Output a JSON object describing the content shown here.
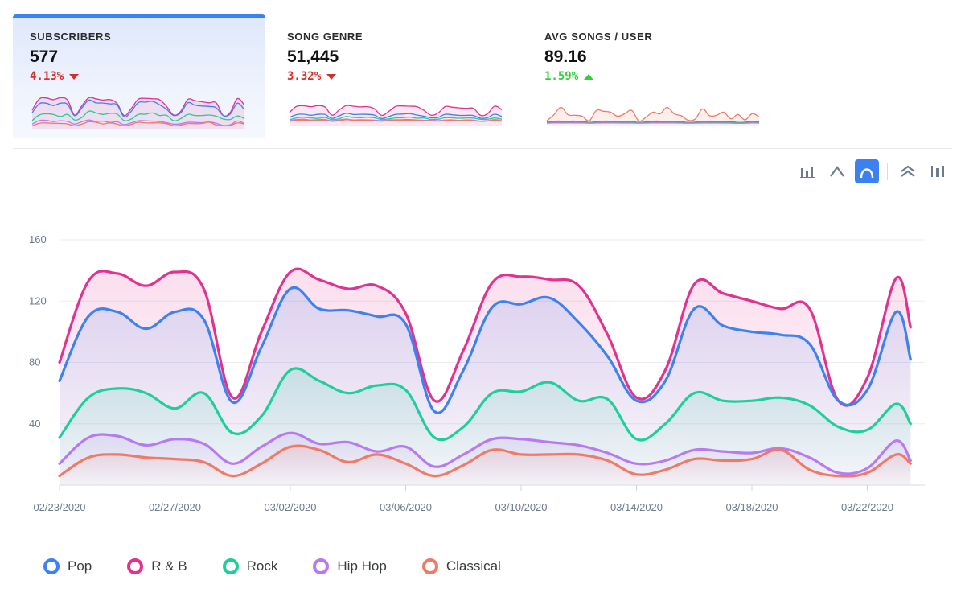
{
  "cards": [
    {
      "label": "SUBSCRIBERS",
      "value": "577",
      "change": "4.13%",
      "direction": "down"
    },
    {
      "label": "SONG GENRE",
      "value": "51,445",
      "change": "3.32%",
      "direction": "down"
    },
    {
      "label": "AVG SONGS / USER",
      "value": "89.16",
      "change": "1.59%",
      "direction": "up"
    }
  ],
  "toolbar": {
    "icons": [
      "bar-chart-icon",
      "line-chart-icon",
      "smooth-curve-icon",
      "stacked-area-icon",
      "column-toggle-icon"
    ],
    "active": "smooth-curve-icon"
  },
  "colors": {
    "Pop": "#3d82ef",
    "R & B": "#e2328f",
    "Rock": "#1fcf9b",
    "Hip Hop": "#b77bef",
    "Classical": "#f07a66",
    "accent": "#3b82f0"
  },
  "chart_data": {
    "type": "area",
    "smooth": true,
    "x": [
      "02/23/2020",
      "02/24/2020",
      "02/25/2020",
      "02/26/2020",
      "02/27/2020",
      "02/28/2020",
      "02/29/2020",
      "03/01/2020",
      "03/02/2020",
      "03/03/2020",
      "03/04/2020",
      "03/05/2020",
      "03/06/2020",
      "03/07/2020",
      "03/08/2020",
      "03/09/2020",
      "03/10/2020",
      "03/11/2020",
      "03/12/2020",
      "03/13/2020",
      "03/14/2020",
      "03/15/2020",
      "03/16/2020",
      "03/17/2020",
      "03/18/2020",
      "03/19/2020",
      "03/20/2020",
      "03/21/2020",
      "03/22/2020",
      "03/23/2020",
      "03/23/2020 12:00"
    ],
    "x_tick_labels": [
      "02/23/2020",
      "02/27/2020",
      "03/02/2020",
      "03/06/2020",
      "03/10/2020",
      "03/14/2020",
      "03/18/2020",
      "03/22/2020"
    ],
    "ylim": [
      0,
      160
    ],
    "y_ticks": [
      40,
      80,
      120,
      160
    ],
    "grid": true,
    "legend": "bottom-left",
    "series": [
      {
        "name": "Pop",
        "values": [
          68,
          110,
          113,
          102,
          113,
          108,
          54,
          90,
          128,
          115,
          114,
          110,
          105,
          48,
          75,
          116,
          118,
          122,
          106,
          84,
          55,
          68,
          115,
          104,
          100,
          98,
          92,
          55,
          62,
          113,
          82
        ]
      },
      {
        "name": "R & B",
        "values": [
          80,
          133,
          138,
          130,
          139,
          128,
          57,
          100,
          139,
          134,
          128,
          130,
          112,
          55,
          88,
          132,
          136,
          134,
          130,
          98,
          57,
          75,
          131,
          125,
          120,
          115,
          115,
          55,
          70,
          135,
          103
        ]
      },
      {
        "name": "Rock",
        "values": [
          31,
          57,
          63,
          60,
          50,
          60,
          34,
          45,
          75,
          68,
          60,
          65,
          62,
          31,
          38,
          60,
          61,
          67,
          55,
          56,
          30,
          40,
          60,
          55,
          55,
          57,
          52,
          38,
          36,
          53,
          40
        ]
      },
      {
        "name": "Hip Hop",
        "values": [
          14,
          31,
          32,
          26,
          30,
          27,
          14,
          25,
          34,
          27,
          28,
          22,
          25,
          12,
          20,
          30,
          30,
          28,
          26,
          21,
          14,
          16,
          23,
          22,
          21,
          24,
          18,
          8,
          11,
          29,
          16
        ]
      },
      {
        "name": "Classical",
        "values": [
          6,
          18,
          20,
          18,
          17,
          15,
          6,
          14,
          25,
          23,
          15,
          20,
          14,
          6,
          13,
          23,
          20,
          20,
          20,
          16,
          7,
          10,
          17,
          16,
          17,
          23,
          10,
          6,
          8,
          20,
          14
        ]
      }
    ]
  }
}
